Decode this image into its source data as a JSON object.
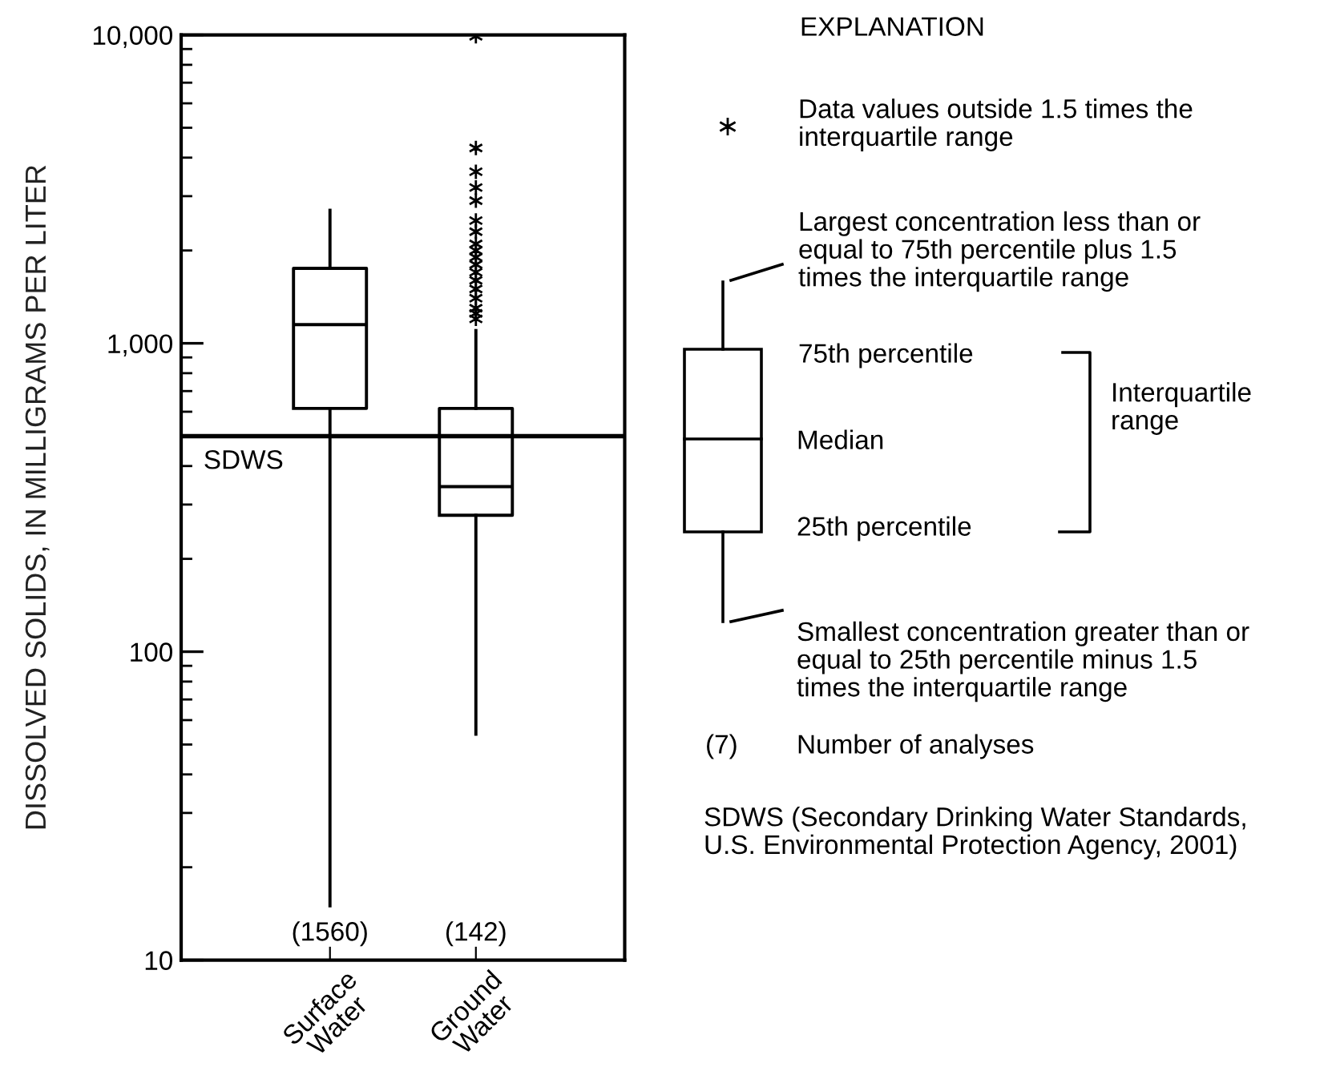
{
  "chart_data": {
    "type": "box",
    "categories": [
      "Surface\nWater",
      "Ground\nWater"
    ],
    "ylabel": "DISSOLVED SOLIDS, IN MILLIGRAMS PER LITER",
    "log": true,
    "ylim": [
      10,
      10000
    ],
    "yticks": [
      10,
      100,
      {
        "value": 1000,
        "label": "1,000"
      },
      {
        "value": 10000,
        "label": "10,000"
      }
    ],
    "marker": "star",
    "boxes": [
      {
        "low": 15,
        "q1": 615,
        "median": 1150,
        "q3": 1750,
        "high": 2700
      },
      {
        "low": 54,
        "q1": 277,
        "median": 343,
        "q3": 615,
        "high": 1100,
        "outliers": [
          1200,
          1250,
          1300,
          1400,
          1500,
          1600,
          1700,
          1800,
          1900,
          2000,
          2100,
          2300,
          2500,
          2900,
          3200,
          3600,
          4300,
          9900
        ]
      }
    ],
    "ref_lines": [
      {
        "axis": "y",
        "value": 500,
        "label": "SDWS"
      }
    ],
    "annotations": [
      "(1560)",
      "(142)",
      "EXPLANATION",
      "Data values outside 1.5 times the\ninterquartile range",
      "Largest concentration less than or\nequal to 75th percentile plus 1.5\ntimes the interquartile range",
      "75th percentile",
      "Median",
      "25th percentile",
      "Interquartile\nrange",
      "Smallest concentration greater than or\nequal to 25th percentile minus 1.5\ntimes the interquartile range",
      "(7)",
      "Number of analyses",
      "SDWS (Secondary Drinking Water Standards,\nU.S. Environmental Protection Agency, 2001)"
    ]
  }
}
